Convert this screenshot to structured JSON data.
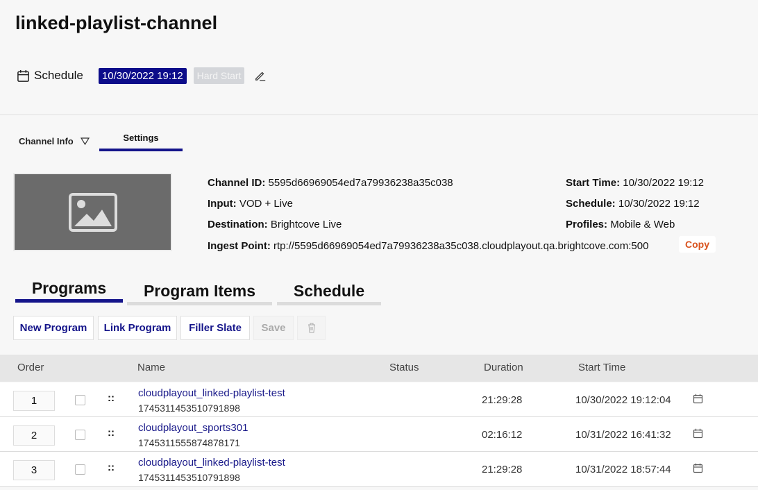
{
  "header": {
    "title": "linked-playlist-channel",
    "schedule_label": "Schedule",
    "schedule_date": "10/30/2022 19:12",
    "hard_start": "Hard Start"
  },
  "tabs": {
    "channel_info": "Channel Info",
    "settings": "Settings"
  },
  "info": {
    "channel_id_label": "Channel ID:",
    "channel_id": "5595d66969054ed7a79936238a35c038",
    "input_label": "Input:",
    "input": "VOD + Live",
    "destination_label": "Destination:",
    "destination": "Brightcove Live",
    "ingest_label": "Ingest Point:",
    "ingest": "rtp://5595d66969054ed7a79936238a35c038.cloudplayout.qa.brightcove.com:500",
    "start_time_label": "Start Time:",
    "start_time": "10/30/2022 19:12",
    "schedule_label": "Schedule:",
    "schedule": "10/30/2022 19:12",
    "profiles_label": "Profiles:",
    "profiles": "Mobile & Web",
    "copy": "Copy"
  },
  "program_tabs": [
    "Programs",
    "Program Items",
    "Schedule"
  ],
  "buttons": {
    "new_program": "New Program",
    "link_program": "Link Program",
    "filler_slate": "Filler Slate",
    "save": "Save"
  },
  "table": {
    "headers": [
      "Order",
      "Name",
      "Status",
      "Duration",
      "Start Time"
    ],
    "rows": [
      {
        "order": "1",
        "name": "cloudplayout_linked-playlist-test",
        "id": "1745311453510791898",
        "status": "",
        "duration": "21:29:28",
        "start": "10/30/2022 19:12:04"
      },
      {
        "order": "2",
        "name": "cloudplayout_sports301",
        "id": "1745311555874878171",
        "status": "",
        "duration": "02:16:12",
        "start": "10/31/2022 16:41:32"
      },
      {
        "order": "3",
        "name": "cloudplayout_linked-playlist-test",
        "id": "1745311453510791898",
        "status": "",
        "duration": "21:29:28",
        "start": "10/31/2022 18:57:44"
      }
    ]
  },
  "colors": {
    "accent": "#14148a",
    "copy": "#d9531e"
  }
}
